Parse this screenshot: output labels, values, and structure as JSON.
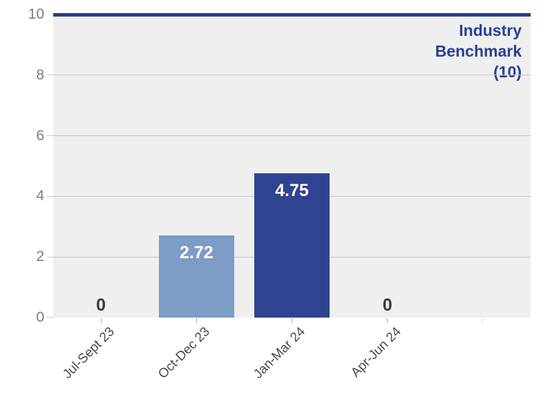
{
  "chart_data": {
    "type": "bar",
    "title": "",
    "categories": [
      "Jul-Sept 23",
      "Oct-Dec 23",
      "Jan-Mar 24",
      "Apr-Jun 24"
    ],
    "values": [
      0,
      2.72,
      4.75,
      0
    ],
    "value_labels": [
      "0",
      "2.72",
      "4.75",
      "0"
    ],
    "bar_colors": [
      null,
      "#7d9cc6",
      "#2f4391",
      null
    ],
    "ylim": [
      0,
      10
    ],
    "yticks": [
      0,
      2,
      4,
      6,
      8,
      10
    ],
    "x_slots": 5,
    "grid": true,
    "legend_position": "none",
    "benchmark": {
      "value": 10,
      "label_lines": [
        "Industry",
        "Benchmark",
        "(10)"
      ]
    },
    "colors": {
      "plot_bg": "#efeff0",
      "gridline": "#c7c7c7",
      "benchmark_line": "#2a3d88",
      "benchmark_text": "#2a3f8f",
      "bar_light": "#7d9cc6",
      "bar_dark": "#2f4391",
      "ytick_label": "#7d7d7d",
      "xtick_label": "#4a4a4a",
      "xtick_mark": "#adadad",
      "zero_label": "#383838",
      "value_label": "#ffffff"
    }
  }
}
